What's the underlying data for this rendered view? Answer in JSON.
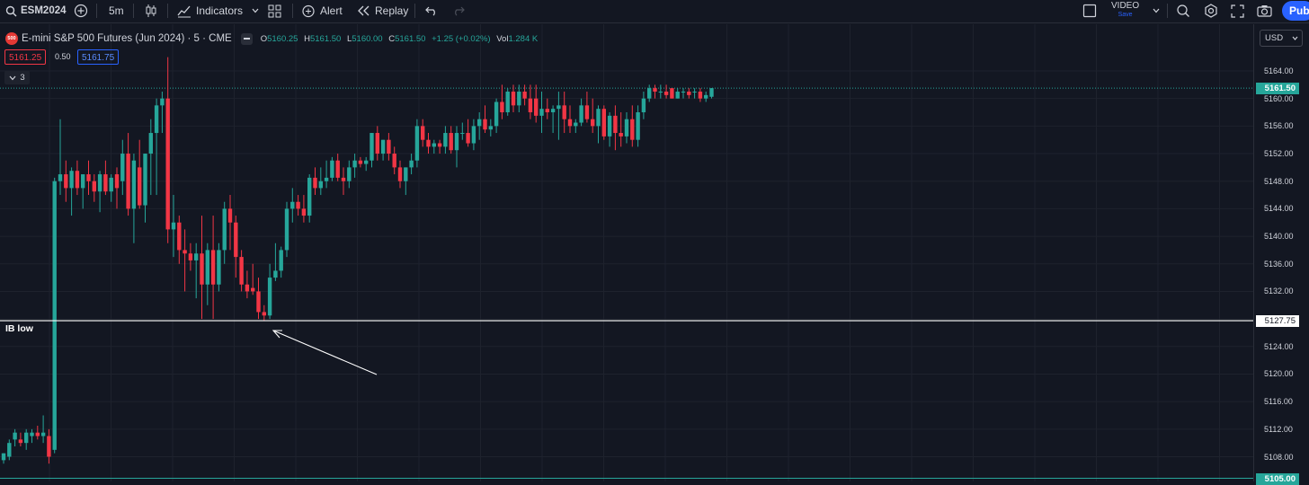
{
  "toolbar": {
    "symbol": "ESM2024",
    "interval": "5m",
    "indicators": "Indicators",
    "alert": "Alert",
    "replay": "Replay",
    "video_title": "VIDEO",
    "video_sub": "Save",
    "publish": "Pub"
  },
  "legend": {
    "badge": "500",
    "title": "E-mini S&P 500 Futures (Jun 2024) · 5 · CME",
    "o_label": "O",
    "o_val": "5160.25",
    "h_label": "H",
    "h_val": "5161.50",
    "l_label": "L",
    "l_val": "5160.00",
    "c_label": "C",
    "c_val": "5161.50",
    "change": "+1.25 (+0.02%)",
    "vol_label": "Vol",
    "vol_val": "1.284 K",
    "sell": "5161.25",
    "spread": "0.50",
    "buy": "5161.75",
    "collapsed": "3"
  },
  "currency": "USD",
  "price_axis": {
    "ticks": [
      "5164.00",
      "5160.00",
      "5156.00",
      "5152.00",
      "5148.00",
      "5144.00",
      "5140.00",
      "5136.00",
      "5132.00",
      "5124.00",
      "5120.00",
      "5116.00",
      "5112.00",
      "5108.00"
    ],
    "current_price": "5161.50",
    "ib_low_price": "5127.75",
    "bottom_price": "5105.00"
  },
  "annotations": {
    "ib_low": "IB low"
  },
  "colors": {
    "up": "#26a69a",
    "down": "#f23645",
    "background": "#131722",
    "grid": "#1e222d",
    "accent": "#2962ff"
  },
  "chart_data": {
    "type": "candlestick",
    "ylim": [
      5104,
      5168
    ],
    "candles": [
      {
        "o": 5107.5,
        "h": 5108.5,
        "l": 5107.0,
        "c": 5108.5
      },
      {
        "o": 5108.0,
        "h": 5110.5,
        "l": 5107.5,
        "c": 5110.0
      },
      {
        "o": 5110.5,
        "h": 5112.0,
        "l": 5109.5,
        "c": 5111.5
      },
      {
        "o": 5110.5,
        "h": 5111.5,
        "l": 5109.5,
        "c": 5110.0
      },
      {
        "o": 5110.0,
        "h": 5112.0,
        "l": 5109.0,
        "c": 5111.5
      },
      {
        "o": 5111.0,
        "h": 5112.0,
        "l": 5110.0,
        "c": 5111.5
      },
      {
        "o": 5111.5,
        "h": 5112.5,
        "l": 5110.5,
        "c": 5111.0
      },
      {
        "o": 5111.0,
        "h": 5114.0,
        "l": 5110.0,
        "c": 5111.5
      },
      {
        "o": 5111.0,
        "h": 5112.0,
        "l": 5107.0,
        "c": 5108.0
      },
      {
        "o": 5109.0,
        "h": 5148.5,
        "l": 5108.5,
        "c": 5148.0
      },
      {
        "o": 5148.0,
        "h": 5157.0,
        "l": 5146.0,
        "c": 5149.0
      },
      {
        "o": 5149.0,
        "h": 5151.0,
        "l": 5145.0,
        "c": 5147.0
      },
      {
        "o": 5147.0,
        "h": 5150.0,
        "l": 5143.0,
        "c": 5149.5
      },
      {
        "o": 5149.5,
        "h": 5151.0,
        "l": 5146.0,
        "c": 5147.0
      },
      {
        "o": 5147.0,
        "h": 5149.0,
        "l": 5144.0,
        "c": 5149.0
      },
      {
        "o": 5149.0,
        "h": 5151.0,
        "l": 5146.0,
        "c": 5148.0
      },
      {
        "o": 5148.0,
        "h": 5149.0,
        "l": 5145.0,
        "c": 5146.5
      },
      {
        "o": 5146.5,
        "h": 5149.5,
        "l": 5143.5,
        "c": 5149.0
      },
      {
        "o": 5149.0,
        "h": 5151.0,
        "l": 5146.0,
        "c": 5146.5
      },
      {
        "o": 5146.5,
        "h": 5149.0,
        "l": 5145.0,
        "c": 5148.5
      },
      {
        "o": 5149.0,
        "h": 5150.0,
        "l": 5144.0,
        "c": 5147.0
      },
      {
        "o": 5148.0,
        "h": 5154.0,
        "l": 5146.0,
        "c": 5152.0
      },
      {
        "o": 5152.0,
        "h": 5155.0,
        "l": 5143.0,
        "c": 5144.0
      },
      {
        "o": 5144.0,
        "h": 5152.0,
        "l": 5139.0,
        "c": 5151.0
      },
      {
        "o": 5150.0,
        "h": 5154.0,
        "l": 5144.0,
        "c": 5144.5
      },
      {
        "o": 5144.5,
        "h": 5152.0,
        "l": 5142.0,
        "c": 5152.0
      },
      {
        "o": 5152.0,
        "h": 5157.0,
        "l": 5146.0,
        "c": 5155.0
      },
      {
        "o": 5155.0,
        "h": 5160.0,
        "l": 5146.0,
        "c": 5159.0
      },
      {
        "o": 5159.0,
        "h": 5161.0,
        "l": 5155.0,
        "c": 5160.0
      },
      {
        "o": 5160.0,
        "h": 5166.0,
        "l": 5139.0,
        "c": 5141.0
      },
      {
        "o": 5141.0,
        "h": 5146.0,
        "l": 5137.0,
        "c": 5142.0
      },
      {
        "o": 5142.0,
        "h": 5143.0,
        "l": 5136.0,
        "c": 5138.0
      },
      {
        "o": 5138.0,
        "h": 5141.0,
        "l": 5132.0,
        "c": 5137.5
      },
      {
        "o": 5137.5,
        "h": 5139.0,
        "l": 5135.0,
        "c": 5136.5
      },
      {
        "o": 5136.5,
        "h": 5139.0,
        "l": 5131.0,
        "c": 5137.5
      },
      {
        "o": 5137.5,
        "h": 5143.0,
        "l": 5128.0,
        "c": 5133.0
      },
      {
        "o": 5133.0,
        "h": 5139.0,
        "l": 5130.0,
        "c": 5138.0
      },
      {
        "o": 5138.0,
        "h": 5143.0,
        "l": 5128.0,
        "c": 5133.0
      },
      {
        "o": 5133.0,
        "h": 5139.0,
        "l": 5132.0,
        "c": 5138.0
      },
      {
        "o": 5138.0,
        "h": 5145.0,
        "l": 5136.0,
        "c": 5144.0
      },
      {
        "o": 5144.0,
        "h": 5146.0,
        "l": 5138.0,
        "c": 5142.0
      },
      {
        "o": 5142.0,
        "h": 5143.0,
        "l": 5134.0,
        "c": 5137.0
      },
      {
        "o": 5137.0,
        "h": 5138.0,
        "l": 5132.0,
        "c": 5133.0
      },
      {
        "o": 5133.0,
        "h": 5135.0,
        "l": 5131.0,
        "c": 5132.0
      },
      {
        "o": 5132.5,
        "h": 5136.0,
        "l": 5131.5,
        "c": 5132.0
      },
      {
        "o": 5132.0,
        "h": 5134.0,
        "l": 5128.0,
        "c": 5129.0
      },
      {
        "o": 5129.0,
        "h": 5130.0,
        "l": 5127.75,
        "c": 5128.5
      },
      {
        "o": 5128.5,
        "h": 5136.0,
        "l": 5128.0,
        "c": 5134.0
      },
      {
        "o": 5134.0,
        "h": 5139.0,
        "l": 5133.5,
        "c": 5135.0
      },
      {
        "o": 5135.0,
        "h": 5138.5,
        "l": 5134.0,
        "c": 5138.0
      },
      {
        "o": 5138.0,
        "h": 5145.0,
        "l": 5137.0,
        "c": 5144.0
      },
      {
        "o": 5144.0,
        "h": 5147.0,
        "l": 5142.0,
        "c": 5145.0
      },
      {
        "o": 5145.0,
        "h": 5146.0,
        "l": 5143.0,
        "c": 5144.0
      },
      {
        "o": 5144.0,
        "h": 5146.0,
        "l": 5142.0,
        "c": 5143.0
      },
      {
        "o": 5143.0,
        "h": 5149.0,
        "l": 5142.0,
        "c": 5148.5
      },
      {
        "o": 5148.5,
        "h": 5150.0,
        "l": 5146.0,
        "c": 5147.0
      },
      {
        "o": 5147.0,
        "h": 5150.0,
        "l": 5146.0,
        "c": 5148.0
      },
      {
        "o": 5148.0,
        "h": 5151.0,
        "l": 5147.0,
        "c": 5148.5
      },
      {
        "o": 5148.5,
        "h": 5151.5,
        "l": 5148.0,
        "c": 5151.0
      },
      {
        "o": 5151.0,
        "h": 5152.0,
        "l": 5148.0,
        "c": 5148.5
      },
      {
        "o": 5148.5,
        "h": 5150.0,
        "l": 5146.0,
        "c": 5148.0
      },
      {
        "o": 5148.0,
        "h": 5151.0,
        "l": 5147.0,
        "c": 5150.0
      },
      {
        "o": 5150.0,
        "h": 5152.0,
        "l": 5148.5,
        "c": 5151.0
      },
      {
        "o": 5151.0,
        "h": 5151.5,
        "l": 5150.0,
        "c": 5150.5
      },
      {
        "o": 5150.5,
        "h": 5151.5,
        "l": 5149.5,
        "c": 5151.0
      },
      {
        "o": 5151.0,
        "h": 5155.0,
        "l": 5150.0,
        "c": 5155.0
      },
      {
        "o": 5155.0,
        "h": 5156.0,
        "l": 5151.0,
        "c": 5152.0
      },
      {
        "o": 5152.0,
        "h": 5154.0,
        "l": 5151.0,
        "c": 5154.0
      },
      {
        "o": 5154.0,
        "h": 5155.0,
        "l": 5151.0,
        "c": 5152.0
      },
      {
        "o": 5152.0,
        "h": 5153.0,
        "l": 5149.0,
        "c": 5150.0
      },
      {
        "o": 5150.0,
        "h": 5151.0,
        "l": 5147.0,
        "c": 5148.0
      },
      {
        "o": 5148.0,
        "h": 5150.0,
        "l": 5146.0,
        "c": 5150.0
      },
      {
        "o": 5150.0,
        "h": 5152.0,
        "l": 5149.0,
        "c": 5151.0
      },
      {
        "o": 5151.0,
        "h": 5157.0,
        "l": 5150.0,
        "c": 5156.0
      },
      {
        "o": 5156.0,
        "h": 5157.0,
        "l": 5153.0,
        "c": 5154.0
      },
      {
        "o": 5154.0,
        "h": 5155.0,
        "l": 5152.0,
        "c": 5153.0
      },
      {
        "o": 5153.0,
        "h": 5154.0,
        "l": 5152.0,
        "c": 5153.5
      },
      {
        "o": 5153.5,
        "h": 5154.0,
        "l": 5152.0,
        "c": 5153.0
      },
      {
        "o": 5153.0,
        "h": 5156.0,
        "l": 5152.0,
        "c": 5155.0
      },
      {
        "o": 5155.0,
        "h": 5156.0,
        "l": 5152.0,
        "c": 5152.5
      },
      {
        "o": 5152.5,
        "h": 5156.0,
        "l": 5150.0,
        "c": 5155.0
      },
      {
        "o": 5155.0,
        "h": 5156.5,
        "l": 5154.0,
        "c": 5155.0
      },
      {
        "o": 5155.0,
        "h": 5157.0,
        "l": 5153.0,
        "c": 5153.5
      },
      {
        "o": 5153.5,
        "h": 5157.0,
        "l": 5152.5,
        "c": 5156.0
      },
      {
        "o": 5156.0,
        "h": 5158.0,
        "l": 5154.0,
        "c": 5157.0
      },
      {
        "o": 5157.0,
        "h": 5159.0,
        "l": 5155.0,
        "c": 5155.5
      },
      {
        "o": 5155.5,
        "h": 5157.0,
        "l": 5154.5,
        "c": 5156.0
      },
      {
        "o": 5156.0,
        "h": 5160.0,
        "l": 5155.0,
        "c": 5159.5
      },
      {
        "o": 5159.5,
        "h": 5162.0,
        "l": 5157.0,
        "c": 5158.0
      },
      {
        "o": 5158.0,
        "h": 5161.5,
        "l": 5157.5,
        "c": 5161.0
      },
      {
        "o": 5161.0,
        "h": 5162.0,
        "l": 5158.0,
        "c": 5159.0
      },
      {
        "o": 5159.0,
        "h": 5162.0,
        "l": 5158.0,
        "c": 5161.0
      },
      {
        "o": 5161.0,
        "h": 5162.0,
        "l": 5159.0,
        "c": 5160.0
      },
      {
        "o": 5160.0,
        "h": 5162.0,
        "l": 5157.0,
        "c": 5158.0
      },
      {
        "o": 5160.0,
        "h": 5162.0,
        "l": 5156.5,
        "c": 5157.5
      },
      {
        "o": 5157.5,
        "h": 5161.0,
        "l": 5155.0,
        "c": 5158.5
      },
      {
        "o": 5158.5,
        "h": 5160.0,
        "l": 5157.0,
        "c": 5158.0
      },
      {
        "o": 5158.0,
        "h": 5159.0,
        "l": 5155.0,
        "c": 5158.5
      },
      {
        "o": 5158.5,
        "h": 5161.0,
        "l": 5154.0,
        "c": 5159.0
      },
      {
        "o": 5159.0,
        "h": 5161.0,
        "l": 5155.0,
        "c": 5157.0
      },
      {
        "o": 5157.0,
        "h": 5159.0,
        "l": 5155.0,
        "c": 5156.0
      },
      {
        "o": 5156.0,
        "h": 5157.0,
        "l": 5155.0,
        "c": 5156.5
      },
      {
        "o": 5156.5,
        "h": 5160.0,
        "l": 5156.0,
        "c": 5159.0
      },
      {
        "o": 5159.0,
        "h": 5161.0,
        "l": 5156.5,
        "c": 5157.0
      },
      {
        "o": 5157.0,
        "h": 5160.0,
        "l": 5155.0,
        "c": 5156.0
      },
      {
        "o": 5156.0,
        "h": 5159.0,
        "l": 5153.5,
        "c": 5158.5
      },
      {
        "o": 5158.5,
        "h": 5159.0,
        "l": 5154.0,
        "c": 5154.5
      },
      {
        "o": 5154.5,
        "h": 5158.0,
        "l": 5153.0,
        "c": 5157.5
      },
      {
        "o": 5157.5,
        "h": 5159.0,
        "l": 5152.5,
        "c": 5155.0
      },
      {
        "o": 5155.0,
        "h": 5158.0,
        "l": 5153.0,
        "c": 5154.5
      },
      {
        "o": 5154.5,
        "h": 5158.0,
        "l": 5153.5,
        "c": 5157.0
      },
      {
        "o": 5157.0,
        "h": 5159.0,
        "l": 5153.0,
        "c": 5154.0
      },
      {
        "o": 5154.0,
        "h": 5159.0,
        "l": 5153.0,
        "c": 5158.0
      },
      {
        "o": 5158.0,
        "h": 5161.0,
        "l": 5157.0,
        "c": 5160.0
      },
      {
        "o": 5160.0,
        "h": 5162.0,
        "l": 5159.5,
        "c": 5161.5
      },
      {
        "o": 5161.5,
        "h": 5162.0,
        "l": 5160.0,
        "c": 5161.0
      },
      {
        "o": 5161.0,
        "h": 5162.0,
        "l": 5160.0,
        "c": 5161.0
      },
      {
        "o": 5161.0,
        "h": 5162.0,
        "l": 5160.0,
        "c": 5160.5
      },
      {
        "o": 5161.5,
        "h": 5161.5,
        "l": 5160.0,
        "c": 5160.0
      },
      {
        "o": 5160.0,
        "h": 5161.5,
        "l": 5160.0,
        "c": 5161.0
      },
      {
        "o": 5161.0,
        "h": 5161.5,
        "l": 5160.0,
        "c": 5161.0
      },
      {
        "o": 5161.0,
        "h": 5161.5,
        "l": 5160.0,
        "c": 5160.5
      },
      {
        "o": 5161.0,
        "h": 5161.5,
        "l": 5160.0,
        "c": 5161.0
      },
      {
        "o": 5161.0,
        "h": 5161.5,
        "l": 5159.5,
        "c": 5160.0
      },
      {
        "o": 5160.0,
        "h": 5161.0,
        "l": 5159.5,
        "c": 5160.5
      },
      {
        "o": 5160.25,
        "h": 5161.5,
        "l": 5160.0,
        "c": 5161.5
      }
    ]
  }
}
